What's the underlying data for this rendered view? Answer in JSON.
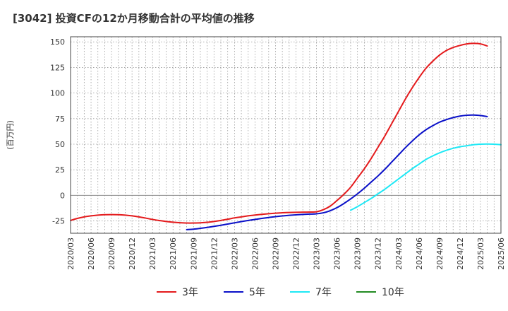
{
  "chart_data": {
    "type": "line",
    "title": "[3042]  投資CFの12か月移動合計の平均値の推移",
    "ylabel": "(百万円)",
    "xlabel": "",
    "ylim": [
      -37,
      155
    ],
    "yticks": [
      150,
      125,
      100,
      75,
      50,
      25,
      0,
      -25
    ],
    "xlim": [
      "2020-03",
      "2025-06"
    ],
    "xticks": [
      "2020/03",
      "2020/06",
      "2020/09",
      "2020/12",
      "2021/03",
      "2021/06",
      "2021/09",
      "2021/12",
      "2022/03",
      "2022/06",
      "2022/09",
      "2022/12",
      "2023/03",
      "2023/06",
      "2023/09",
      "2023/12",
      "2024/03",
      "2024/06",
      "2024/09",
      "2024/12",
      "2025/03",
      "2025/06"
    ],
    "grid": true,
    "legend_position": "bottom",
    "series": [
      {
        "name": "3年",
        "color": "#e41a1c",
        "points": [
          [
            "2020-03",
            -24.5
          ],
          [
            "2020-04",
            -22.5
          ],
          [
            "2020-05",
            -21.0
          ],
          [
            "2020-06",
            -20.0
          ],
          [
            "2020-07",
            -19.3
          ],
          [
            "2020-08",
            -18.9
          ],
          [
            "2020-09",
            -18.8
          ],
          [
            "2020-10",
            -18.9
          ],
          [
            "2020-11",
            -19.3
          ],
          [
            "2020-12",
            -20.0
          ],
          [
            "2021-01",
            -21.0
          ],
          [
            "2021-02",
            -22.2
          ],
          [
            "2021-03",
            -23.5
          ],
          [
            "2021-04",
            -24.6
          ],
          [
            "2021-05",
            -25.5
          ],
          [
            "2021-06",
            -26.2
          ],
          [
            "2021-07",
            -26.7
          ],
          [
            "2021-08",
            -27.0
          ],
          [
            "2021-09",
            -27.0
          ],
          [
            "2021-10",
            -26.8
          ],
          [
            "2021-11",
            -26.3
          ],
          [
            "2021-12",
            -25.5
          ],
          [
            "2022-01",
            -24.5
          ],
          [
            "2022-02",
            -23.3
          ],
          [
            "2022-03",
            -22.0
          ],
          [
            "2022-04",
            -21.0
          ],
          [
            "2022-05",
            -20.0
          ],
          [
            "2022-06",
            -19.2
          ],
          [
            "2022-07",
            -18.5
          ],
          [
            "2022-08",
            -17.9
          ],
          [
            "2022-09",
            -17.4
          ],
          [
            "2022-10",
            -17.0
          ],
          [
            "2022-11",
            -16.7
          ],
          [
            "2022-12",
            -16.5
          ],
          [
            "2023-01",
            -16.4
          ],
          [
            "2023-02",
            -16.3
          ],
          [
            "2023-03",
            -16.0
          ],
          [
            "2023-04",
            -14.0
          ],
          [
            "2023-05",
            -10.5
          ],
          [
            "2023-06",
            -5.0
          ],
          [
            "2023-07",
            1.0
          ],
          [
            "2023-08",
            8.0
          ],
          [
            "2023-09",
            17.0
          ],
          [
            "2023-10",
            26.0
          ],
          [
            "2023-11",
            36.0
          ],
          [
            "2023-12",
            47.0
          ],
          [
            "2024-01",
            58.0
          ],
          [
            "2024-02",
            70.0
          ],
          [
            "2024-03",
            82.0
          ],
          [
            "2024-04",
            94.0
          ],
          [
            "2024-05",
            105.0
          ],
          [
            "2024-06",
            115.0
          ],
          [
            "2024-07",
            124.0
          ],
          [
            "2024-08",
            131.0
          ],
          [
            "2024-09",
            137.0
          ],
          [
            "2024-10",
            141.5
          ],
          [
            "2024-11",
            144.5
          ],
          [
            "2024-12",
            146.5
          ],
          [
            "2025-01",
            148.0
          ],
          [
            "2025-02",
            148.5
          ],
          [
            "2025-03",
            148.0
          ],
          [
            "2025-04",
            146.0
          ]
        ]
      },
      {
        "name": "5年",
        "color": "#0a10c8",
        "points": [
          [
            "2021-08",
            -33.5
          ],
          [
            "2021-09",
            -33.0
          ],
          [
            "2021-10",
            -32.2
          ],
          [
            "2021-11",
            -31.3
          ],
          [
            "2021-12",
            -30.3
          ],
          [
            "2022-01",
            -29.2
          ],
          [
            "2022-02",
            -28.0
          ],
          [
            "2022-03",
            -26.8
          ],
          [
            "2022-04",
            -25.6
          ],
          [
            "2022-05",
            -24.5
          ],
          [
            "2022-06",
            -23.5
          ],
          [
            "2022-07",
            -22.5
          ],
          [
            "2022-08",
            -21.6
          ],
          [
            "2022-09",
            -20.8
          ],
          [
            "2022-10",
            -20.1
          ],
          [
            "2022-11",
            -19.5
          ],
          [
            "2022-12",
            -19.0
          ],
          [
            "2023-01",
            -18.6
          ],
          [
            "2023-02",
            -18.3
          ],
          [
            "2023-03",
            -18.0
          ],
          [
            "2023-04",
            -17.0
          ],
          [
            "2023-05",
            -15.0
          ],
          [
            "2023-06",
            -12.0
          ],
          [
            "2023-07",
            -8.0
          ],
          [
            "2023-08",
            -3.5
          ],
          [
            "2023-09",
            1.5
          ],
          [
            "2023-10",
            7.0
          ],
          [
            "2023-11",
            13.0
          ],
          [
            "2023-12",
            19.0
          ],
          [
            "2024-01",
            25.5
          ],
          [
            "2024-02",
            32.5
          ],
          [
            "2024-03",
            39.5
          ],
          [
            "2024-04",
            46.5
          ],
          [
            "2024-05",
            53.0
          ],
          [
            "2024-06",
            59.0
          ],
          [
            "2024-07",
            64.0
          ],
          [
            "2024-08",
            68.0
          ],
          [
            "2024-09",
            71.5
          ],
          [
            "2024-10",
            74.0
          ],
          [
            "2024-11",
            76.0
          ],
          [
            "2024-12",
            77.5
          ],
          [
            "2025-01",
            78.3
          ],
          [
            "2025-02",
            78.5
          ],
          [
            "2025-03",
            78.0
          ],
          [
            "2025-04",
            77.0
          ]
        ]
      },
      {
        "name": "7年",
        "color": "#1ee8f5",
        "points": [
          [
            "2023-08",
            -14.5
          ],
          [
            "2023-09",
            -11.0
          ],
          [
            "2023-10",
            -7.0
          ],
          [
            "2023-11",
            -3.0
          ],
          [
            "2023-12",
            1.5
          ],
          [
            "2024-01",
            6.0
          ],
          [
            "2024-02",
            11.0
          ],
          [
            "2024-03",
            16.0
          ],
          [
            "2024-04",
            21.0
          ],
          [
            "2024-05",
            26.0
          ],
          [
            "2024-06",
            30.5
          ],
          [
            "2024-07",
            35.0
          ],
          [
            "2024-08",
            38.5
          ],
          [
            "2024-09",
            41.5
          ],
          [
            "2024-10",
            44.0
          ],
          [
            "2024-11",
            46.0
          ],
          [
            "2024-12",
            47.5
          ],
          [
            "2025-01",
            48.5
          ],
          [
            "2025-02",
            49.5
          ],
          [
            "2025-03",
            50.0
          ],
          [
            "2025-04",
            50.2
          ],
          [
            "2025-05",
            50.0
          ],
          [
            "2025-06",
            49.5
          ]
        ]
      },
      {
        "name": "10年",
        "color": "#228b22",
        "points": []
      }
    ]
  }
}
